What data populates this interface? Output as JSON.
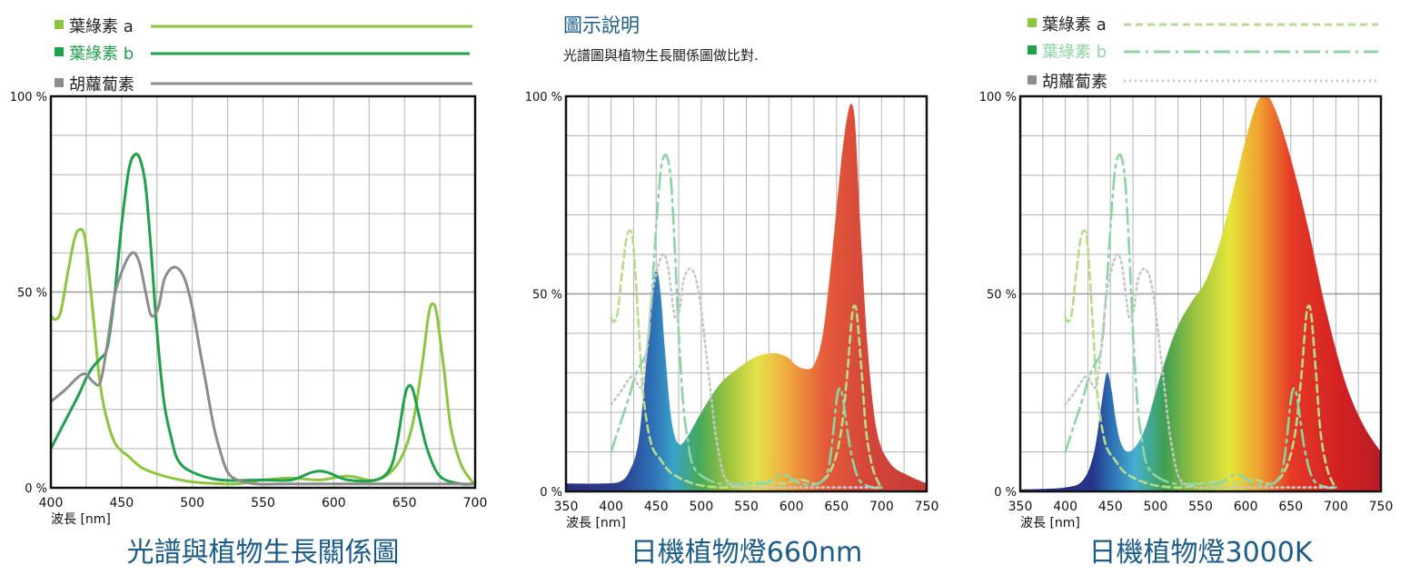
{
  "colors": {
    "chlorophyll_a": "#8cc63f",
    "chlorophyll_b": "#1fa14a",
    "carotene": "#8c8c8c",
    "title": "#1a5c8a",
    "grid": "#b3b3b3"
  },
  "legend_left": [
    {
      "label": "葉綠素 a",
      "color": "#8cc63f"
    },
    {
      "label": "葉綠素 b",
      "color": "#1fa14a"
    },
    {
      "label": "胡蘿蔔素",
      "color": "#8c8c8c"
    }
  ],
  "legend_right": [
    {
      "label": "葉綠素 a",
      "color": "#8cc63f"
    },
    {
      "label": "葉綠素 b",
      "color": "#1fa14a"
    },
    {
      "label": "胡蘿蔔素",
      "color": "#8c8c8c"
    }
  ],
  "description": {
    "title": "圖示說明",
    "text": "光譜圖與植物生長關係圖做比對."
  },
  "chart_data": [
    {
      "type": "line",
      "title": "光譜與植物生長關係圖",
      "xlabel": "波長 [nm]",
      "ylabel": "",
      "xlim": [
        400,
        700
      ],
      "ylim": [
        0,
        100
      ],
      "xticks": [
        400,
        450,
        500,
        550,
        600,
        650,
        700
      ],
      "yticks": [
        {
          "v": 0,
          "label": "0 %"
        },
        {
          "v": 50,
          "label": "50 %"
        },
        {
          "v": 100,
          "label": "100 %"
        }
      ],
      "series": [
        {
          "name": "葉綠素 a",
          "color": "#8cc63f",
          "points": [
            [
              400,
              44
            ],
            [
              403,
              43
            ],
            [
              407,
              45
            ],
            [
              412,
              55
            ],
            [
              417,
              64
            ],
            [
              421,
              66
            ],
            [
              424,
              64
            ],
            [
              427,
              55
            ],
            [
              431,
              40
            ],
            [
              435,
              26
            ],
            [
              440,
              17
            ],
            [
              446,
              11
            ],
            [
              455,
              8
            ],
            [
              465,
              5
            ],
            [
              480,
              3
            ],
            [
              500,
              1.5
            ],
            [
              530,
              1
            ],
            [
              550,
              2
            ],
            [
              570,
              2.5
            ],
            [
              590,
              2
            ],
            [
              610,
              3
            ],
            [
              630,
              2
            ],
            [
              645,
              6
            ],
            [
              655,
              15
            ],
            [
              662,
              30
            ],
            [
              667,
              44
            ],
            [
              670,
              47
            ],
            [
              673,
              44
            ],
            [
              678,
              30
            ],
            [
              683,
              15
            ],
            [
              690,
              6
            ],
            [
              697,
              2
            ],
            [
              700,
              1
            ]
          ]
        },
        {
          "name": "葉綠素 b",
          "color": "#1fa14a",
          "points": [
            [
              400,
              10
            ],
            [
              410,
              17
            ],
            [
              420,
              24
            ],
            [
              425,
              28
            ],
            [
              430,
              31
            ],
            [
              435,
              33
            ],
            [
              440,
              36
            ],
            [
              445,
              49
            ],
            [
              450,
              67
            ],
            [
              455,
              81
            ],
            [
              459,
              85
            ],
            [
              463,
              84
            ],
            [
              467,
              77
            ],
            [
              471,
              60
            ],
            [
              475,
              40
            ],
            [
              480,
              22
            ],
            [
              485,
              13
            ],
            [
              490,
              7
            ],
            [
              500,
              4
            ],
            [
              520,
              2
            ],
            [
              550,
              2
            ],
            [
              570,
              2
            ],
            [
              585,
              4
            ],
            [
              595,
              4
            ],
            [
              610,
              2
            ],
            [
              630,
              2
            ],
            [
              640,
              5
            ],
            [
              645,
              12
            ],
            [
              650,
              23
            ],
            [
              653,
              26
            ],
            [
              656,
              25
            ],
            [
              660,
              19
            ],
            [
              666,
              10
            ],
            [
              675,
              3
            ],
            [
              690,
              1
            ],
            [
              700,
              1
            ]
          ]
        },
        {
          "name": "胡蘿蔔素",
          "color": "#8c8c8c",
          "points": [
            [
              400,
              22
            ],
            [
              410,
              25
            ],
            [
              420,
              28.5
            ],
            [
              425,
              29
            ],
            [
              430,
              27
            ],
            [
              435,
              27
            ],
            [
              440,
              37
            ],
            [
              445,
              49
            ],
            [
              450,
              55
            ],
            [
              455,
              59
            ],
            [
              459,
              60
            ],
            [
              463,
              57
            ],
            [
              467,
              50
            ],
            [
              471,
              44
            ],
            [
              476,
              46
            ],
            [
              480,
              53
            ],
            [
              485,
              56
            ],
            [
              490,
              56
            ],
            [
              495,
              53
            ],
            [
              500,
              46
            ],
            [
              505,
              36
            ],
            [
              510,
              26
            ],
            [
              515,
              16
            ],
            [
              520,
              9
            ],
            [
              525,
              4
            ],
            [
              532,
              2
            ],
            [
              545,
              1
            ],
            [
              570,
              1
            ],
            [
              610,
              1
            ],
            [
              700,
              1
            ]
          ]
        }
      ]
    },
    {
      "type": "area",
      "title": "日機植物燈660nm",
      "xlabel": "波長 [nm]",
      "ylabel": "",
      "xlim": [
        350,
        750
      ],
      "ylim": [
        0,
        100
      ],
      "xticks": [
        350,
        400,
        450,
        500,
        550,
        600,
        650,
        700,
        750
      ],
      "yticks": [
        {
          "v": 0,
          "label": "0 %"
        },
        {
          "v": 50,
          "label": "50 %"
        },
        {
          "v": 100,
          "label": "100 %"
        }
      ],
      "emission": [
        [
          350,
          2
        ],
        [
          390,
          2
        ],
        [
          410,
          2.5
        ],
        [
          420,
          5
        ],
        [
          430,
          12
        ],
        [
          438,
          30
        ],
        [
          444,
          48
        ],
        [
          450,
          56
        ],
        [
          455,
          50
        ],
        [
          460,
          35
        ],
        [
          467,
          18
        ],
        [
          475,
          12
        ],
        [
          485,
          14
        ],
        [
          500,
          20
        ],
        [
          520,
          27
        ],
        [
          540,
          31
        ],
        [
          560,
          34
        ],
        [
          580,
          35
        ],
        [
          595,
          34
        ],
        [
          605,
          32
        ],
        [
          615,
          31
        ],
        [
          625,
          32
        ],
        [
          635,
          40
        ],
        [
          645,
          60
        ],
        [
          655,
          83
        ],
        [
          662,
          95
        ],
        [
          667,
          98
        ],
        [
          671,
          92
        ],
        [
          677,
          65
        ],
        [
          685,
          35
        ],
        [
          695,
          15
        ],
        [
          710,
          7
        ],
        [
          730,
          4
        ],
        [
          750,
          2
        ]
      ]
    },
    {
      "type": "area",
      "title": "日機植物燈3000K",
      "xlabel": "波長 [nm]",
      "ylabel": "",
      "xlim": [
        350,
        750
      ],
      "ylim": [
        0,
        100
      ],
      "xticks": [
        350,
        400,
        450,
        500,
        550,
        600,
        650,
        700,
        750
      ],
      "yticks": [
        {
          "v": 0,
          "label": "0 %"
        },
        {
          "v": 50,
          "label": "50 %"
        },
        {
          "v": 100,
          "label": "100 %"
        }
      ],
      "emission": [
        [
          350,
          0.5
        ],
        [
          400,
          1
        ],
        [
          420,
          3
        ],
        [
          432,
          10
        ],
        [
          440,
          22
        ],
        [
          446,
          30
        ],
        [
          451,
          26
        ],
        [
          456,
          18
        ],
        [
          462,
          12
        ],
        [
          470,
          10
        ],
        [
          480,
          12
        ],
        [
          490,
          17
        ],
        [
          500,
          25
        ],
        [
          512,
          34
        ],
        [
          525,
          42
        ],
        [
          540,
          48
        ],
        [
          555,
          53
        ],
        [
          570,
          62
        ],
        [
          585,
          75
        ],
        [
          600,
          89
        ],
        [
          612,
          98
        ],
        [
          620,
          100
        ],
        [
          628,
          99
        ],
        [
          640,
          92
        ],
        [
          655,
          80
        ],
        [
          670,
          66
        ],
        [
          690,
          45
        ],
        [
          710,
          28
        ],
        [
          730,
          17
        ],
        [
          750,
          10
        ]
      ]
    }
  ]
}
